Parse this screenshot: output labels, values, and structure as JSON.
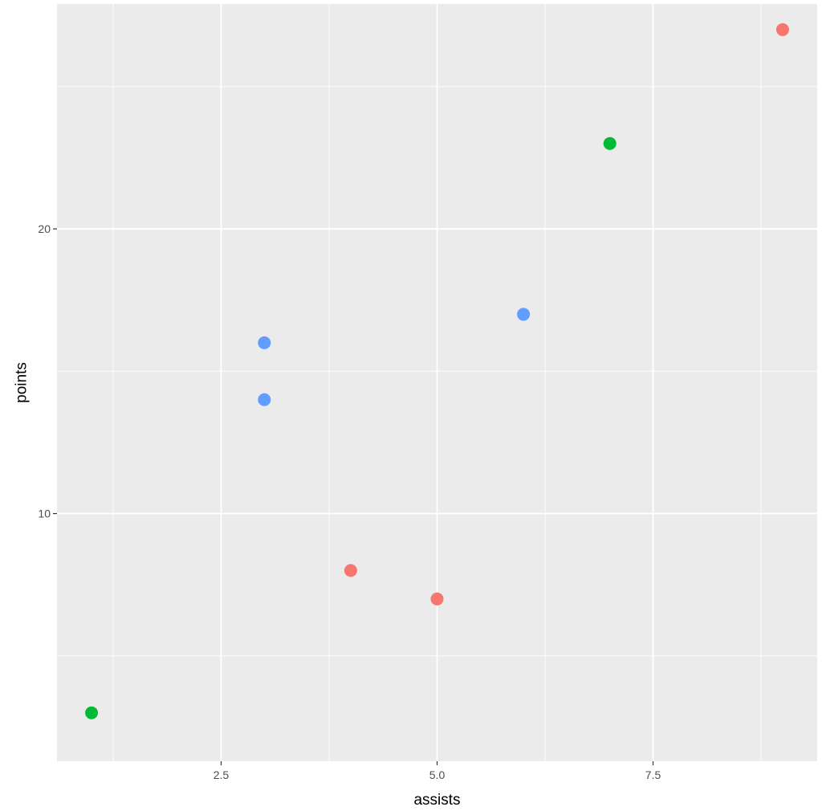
{
  "chart_data": {
    "type": "scatter",
    "title": "",
    "xlabel": "assists",
    "ylabel": "points",
    "xlim": [
      0.6,
      9.4
    ],
    "ylim": [
      1.3,
      27.9
    ],
    "x_ticks": [
      2.5,
      5.0,
      7.5
    ],
    "x_tick_labels": [
      "2.5",
      "5.0",
      "7.5"
    ],
    "y_ticks": [
      10,
      20
    ],
    "y_tick_labels": [
      "10",
      "20"
    ],
    "grid": true,
    "legend": "none",
    "panel_background": "#ebebeb",
    "grid_color": "#ffffff",
    "series": [
      {
        "color": "#f8766d",
        "points": [
          {
            "x": 4,
            "y": 8
          },
          {
            "x": 5,
            "y": 7
          },
          {
            "x": 9,
            "y": 27
          }
        ]
      },
      {
        "color": "#00ba38",
        "points": [
          {
            "x": 1,
            "y": 3
          },
          {
            "x": 7,
            "y": 23
          }
        ]
      },
      {
        "color": "#619cff",
        "points": [
          {
            "x": 3,
            "y": 14
          },
          {
            "x": 3,
            "y": 16
          },
          {
            "x": 6,
            "y": 17
          }
        ]
      }
    ]
  }
}
